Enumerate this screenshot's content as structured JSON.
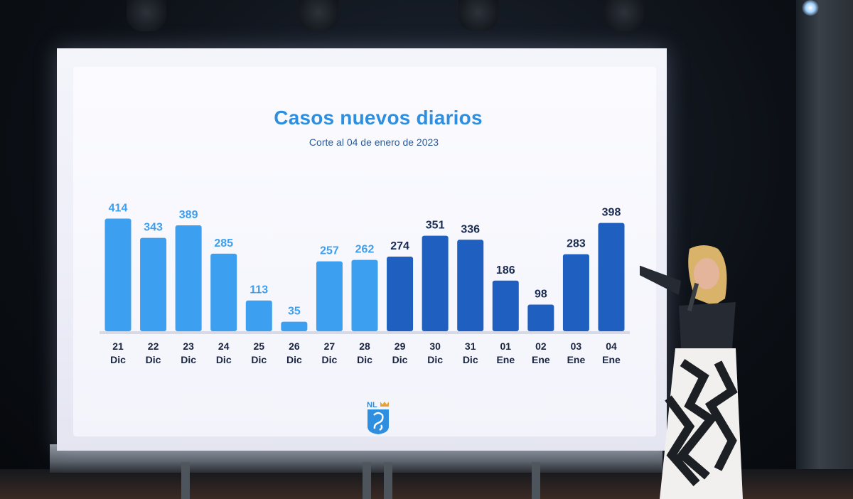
{
  "chart_data": {
    "type": "bar",
    "title": "Casos nuevos diarios",
    "subtitle": "Corte al 04 de enero de 2023",
    "categories": [
      [
        "21",
        "Dic"
      ],
      [
        "22",
        "Dic"
      ],
      [
        "23",
        "Dic"
      ],
      [
        "24",
        "Dic"
      ],
      [
        "25",
        "Dic"
      ],
      [
        "26",
        "Dic"
      ],
      [
        "27",
        "Dic"
      ],
      [
        "28",
        "Dic"
      ],
      [
        "29",
        "Dic"
      ],
      [
        "30",
        "Dic"
      ],
      [
        "31",
        "Dic"
      ],
      [
        "01",
        "Ene"
      ],
      [
        "02",
        "Ene"
      ],
      [
        "03",
        "Ene"
      ],
      [
        "04",
        "Ene"
      ]
    ],
    "values": [
      414,
      343,
      389,
      285,
      113,
      35,
      257,
      262,
      274,
      351,
      336,
      186,
      98,
      283,
      398
    ],
    "series_colors": {
      "light": "#3d9ff0",
      "dark": "#1e5fc0"
    },
    "dark_from_index": 8,
    "label_colors": {
      "light": "#3d9ff0",
      "dark": "#1a2b52"
    }
  },
  "logo": {
    "text": "NL"
  }
}
